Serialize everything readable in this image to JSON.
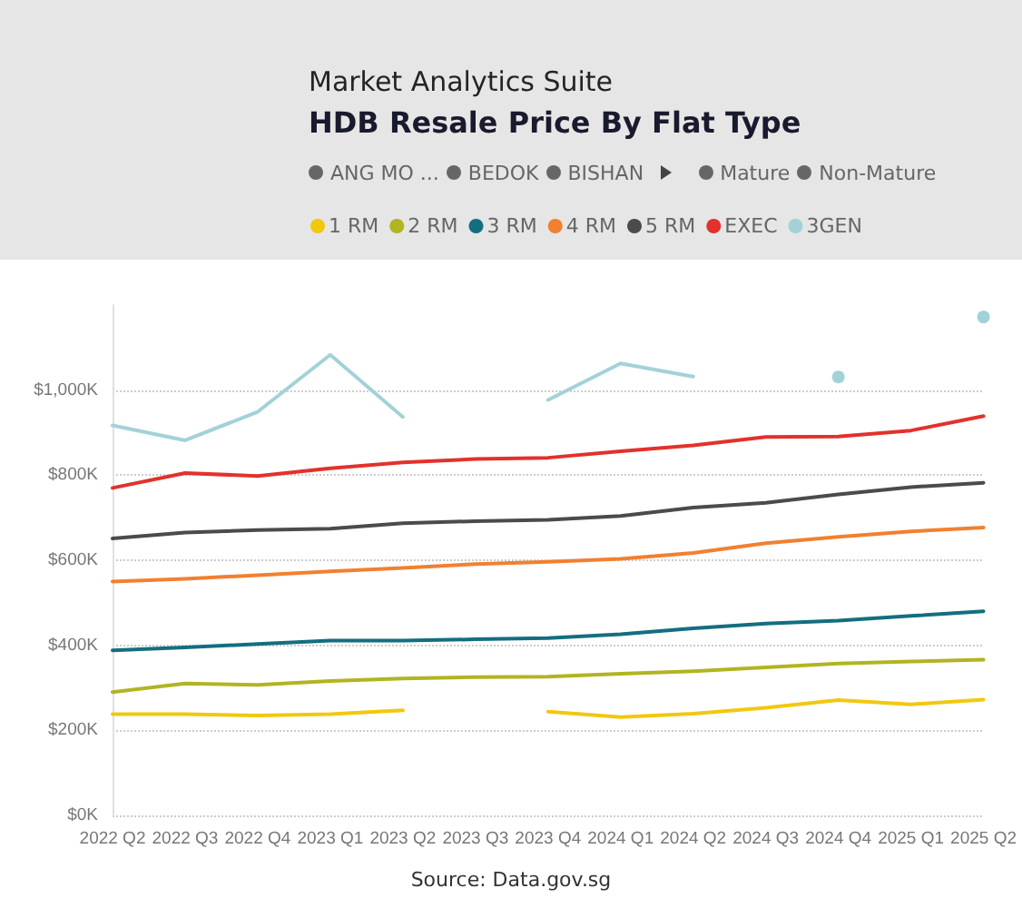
{
  "chart_data": {
    "type": "line",
    "subtitle": "Market Analytics Suite",
    "title": "HDB Resale Price By Flat Type",
    "categories": [
      "2022 Q2",
      "2022 Q3",
      "2022 Q4",
      "2023 Q1",
      "2023 Q2",
      "2023 Q3",
      "2023 Q4",
      "2024 Q1",
      "2024 Q2",
      "2024 Q3",
      "2024 Q4",
      "2025 Q1",
      "2025 Q2"
    ],
    "series": [
      {
        "name": "1 RM",
        "color": "#f2c80f",
        "values": [
          238,
          238,
          235,
          238,
          247,
          null,
          244,
          231,
          239,
          253,
          271,
          261,
          272
        ]
      },
      {
        "name": "2 RM",
        "color": "#b0b521",
        "values": [
          290,
          310,
          307,
          316,
          322,
          325,
          326,
          333,
          339,
          348,
          357,
          362,
          366
        ]
      },
      {
        "name": "3 RM",
        "color": "#136e80",
        "values": [
          388,
          395,
          403,
          411,
          411,
          414,
          417,
          426,
          440,
          451,
          458,
          469,
          480
        ]
      },
      {
        "name": "4 RM",
        "color": "#f2802f",
        "values": [
          550,
          556,
          565,
          574,
          582,
          591,
          596,
          603,
          617,
          640,
          655,
          668,
          677
        ]
      },
      {
        "name": "5 RM",
        "color": "#4b4b4b",
        "values": [
          651,
          665,
          671,
          674,
          687,
          692,
          695,
          704,
          724,
          735,
          755,
          772,
          782
        ]
      },
      {
        "name": "EXEC",
        "color": "#e3312b",
        "values": [
          770,
          805,
          798,
          816,
          830,
          838,
          841,
          856,
          870,
          890,
          891,
          905,
          939
        ]
      },
      {
        "name": "3GEN",
        "color": "#a2d2d8",
        "values": [
          917,
          882,
          949,
          1083,
          937,
          null,
          977,
          1063,
          1032,
          null,
          1031,
          null,
          1172
        ]
      }
    ],
    "ylim": [
      0,
      1200
    ],
    "yticks": [
      {
        "value": 0,
        "label": "$0K"
      },
      {
        "value": 200,
        "label": "$200K"
      },
      {
        "value": 400,
        "label": "$400K"
      },
      {
        "value": 600,
        "label": "$600K"
      },
      {
        "value": 800,
        "label": "$800K"
      },
      {
        "value": 1000,
        "label": "$1,000K"
      }
    ],
    "grid": "y",
    "legend": "top left",
    "marker": "none",
    "annotations": [
      "ANG MO ...",
      "BEDOK",
      "BISHAN",
      "Mature",
      "Non-Mature",
      "Source: Data.gov.sg"
    ]
  }
}
